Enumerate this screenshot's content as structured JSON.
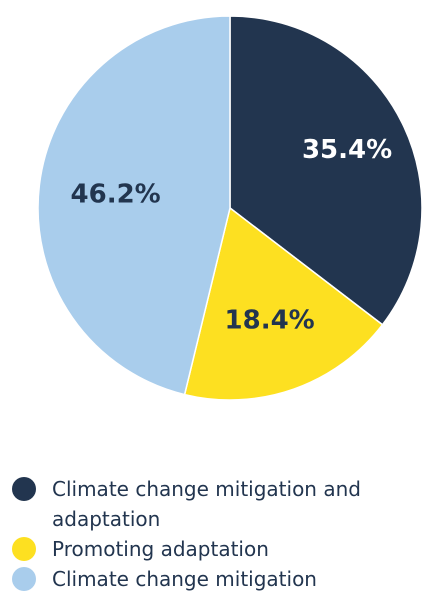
{
  "colors": {
    "background": "#ffffff",
    "text_dark": "#22354f",
    "separator": "#ffffff"
  },
  "chart_data": {
    "type": "pie",
    "title": "",
    "start_angle": "12 o'clock",
    "direction": "clockwise",
    "legend_position": "bottom",
    "slices": [
      {
        "label": "Climate change mitigation and adaptation",
        "value": 35.4,
        "value_label": "35.4%",
        "color": "#22354f",
        "label_color": "#ffffff"
      },
      {
        "label": "Promoting adaptation",
        "value": 18.4,
        "value_label": "18.4%",
        "color": "#fde021",
        "label_color": "#22354f"
      },
      {
        "label": "Climate change mitigation",
        "value": 46.2,
        "value_label": "46.2%",
        "color": "#a9cdec",
        "label_color": "#22354f"
      }
    ]
  },
  "legend": {
    "items": [
      {
        "label": "Climate change mitigation and adaptation",
        "color": "#22354f"
      },
      {
        "label": "Promoting adaptation",
        "color": "#fde021"
      },
      {
        "label": "Climate change mitigation",
        "color": "#a9cdec"
      }
    ]
  }
}
